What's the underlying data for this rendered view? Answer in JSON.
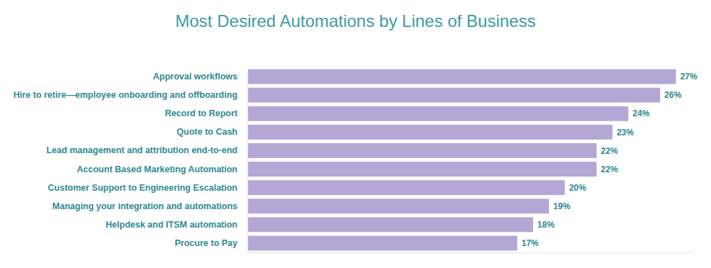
{
  "chart_data": {
    "type": "bar",
    "title": "Most Desired Automations by Lines of Business",
    "orientation": "horizontal",
    "categories": [
      "Approval workflows",
      "Hire to retire—employee onboarding and offboarding",
      "Record to Report",
      "Quote to Cash",
      "Lead management and attribution end-to-end",
      "Account Based Marketing Automation",
      "Customer Support to Engineering Escalation",
      "Managing your integration and automations",
      "Helpdesk and ITSM automation",
      "Procure to Pay"
    ],
    "values": [
      27,
      26,
      24,
      23,
      22,
      22,
      20,
      19,
      18,
      17
    ],
    "value_labels": [
      "27%",
      "26%",
      "24%",
      "23%",
      "22%",
      "22%",
      "20%",
      "19%",
      "18%",
      "17%"
    ],
    "color": "#b4a7d6",
    "xlim": [
      0,
      28
    ],
    "data_labels": true,
    "tick_labels": "y",
    "grid": false
  }
}
